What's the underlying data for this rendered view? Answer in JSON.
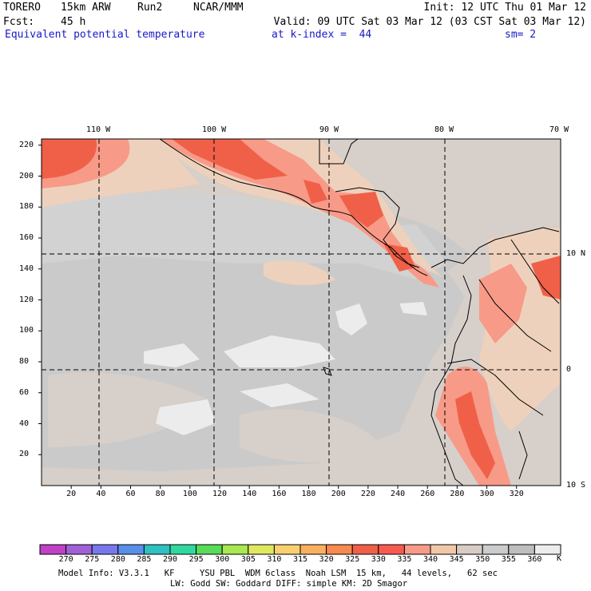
{
  "header": {
    "model": "TORERO",
    "resolution": "15km ARW",
    "run": "Run2",
    "org": "NCAR/MMM",
    "init": "Init: 12 UTC Thu 01 Mar 12",
    "fcst_label": "Fcst:",
    "fcst_value": "45 h",
    "valid": "Valid: 09 UTC Sat 03 Mar 12 (03 CST Sat 03 Mar 12)",
    "field": "Equivalent potential temperature",
    "level": "at k-index =  44",
    "smoothing": "sm= 2"
  },
  "map": {
    "lon_labels": [
      "110 W",
      "100 W",
      "90 W",
      "80 W",
      "70 W"
    ],
    "lat_labels": [
      "10 N",
      "0",
      "10 S"
    ],
    "y_ticks": [
      "220",
      "200",
      "180",
      "160",
      "140",
      "120",
      "100",
      "80",
      "60",
      "40",
      "20"
    ],
    "x_ticks": [
      "20",
      "40",
      "60",
      "80",
      "100",
      "120",
      "140",
      "160",
      "180",
      "200",
      "220",
      "240",
      "260",
      "280",
      "300",
      "320"
    ]
  },
  "colorbar": {
    "labels": [
      "270",
      "275",
      "280",
      "285",
      "290",
      "295",
      "300",
      "305",
      "310",
      "315",
      "320",
      "325",
      "330",
      "335",
      "340",
      "345",
      "350",
      "355",
      "360"
    ],
    "unit": "K",
    "colors": [
      "#c040c8",
      "#a060d8",
      "#7878ec",
      "#5890e8",
      "#30c0c0",
      "#30d8a0",
      "#58dc58",
      "#a8e850",
      "#e0e860",
      "#f8d070",
      "#f8b060",
      "#f88a50",
      "#f06048",
      "#f85a50",
      "#f89a88",
      "#f0c8a8",
      "#d8ccc4",
      "#cccccc",
      "#bebebe",
      "#ececec"
    ]
  },
  "footer": {
    "line1": "Model Info: V3.3.1   KF     YSU PBL  WDM 6class  Noah LSM  15 km,   44 levels,   62 sec",
    "line2": "LW: Godd SW: Goddard DIFF: simple KM: 2D Smagor"
  }
}
